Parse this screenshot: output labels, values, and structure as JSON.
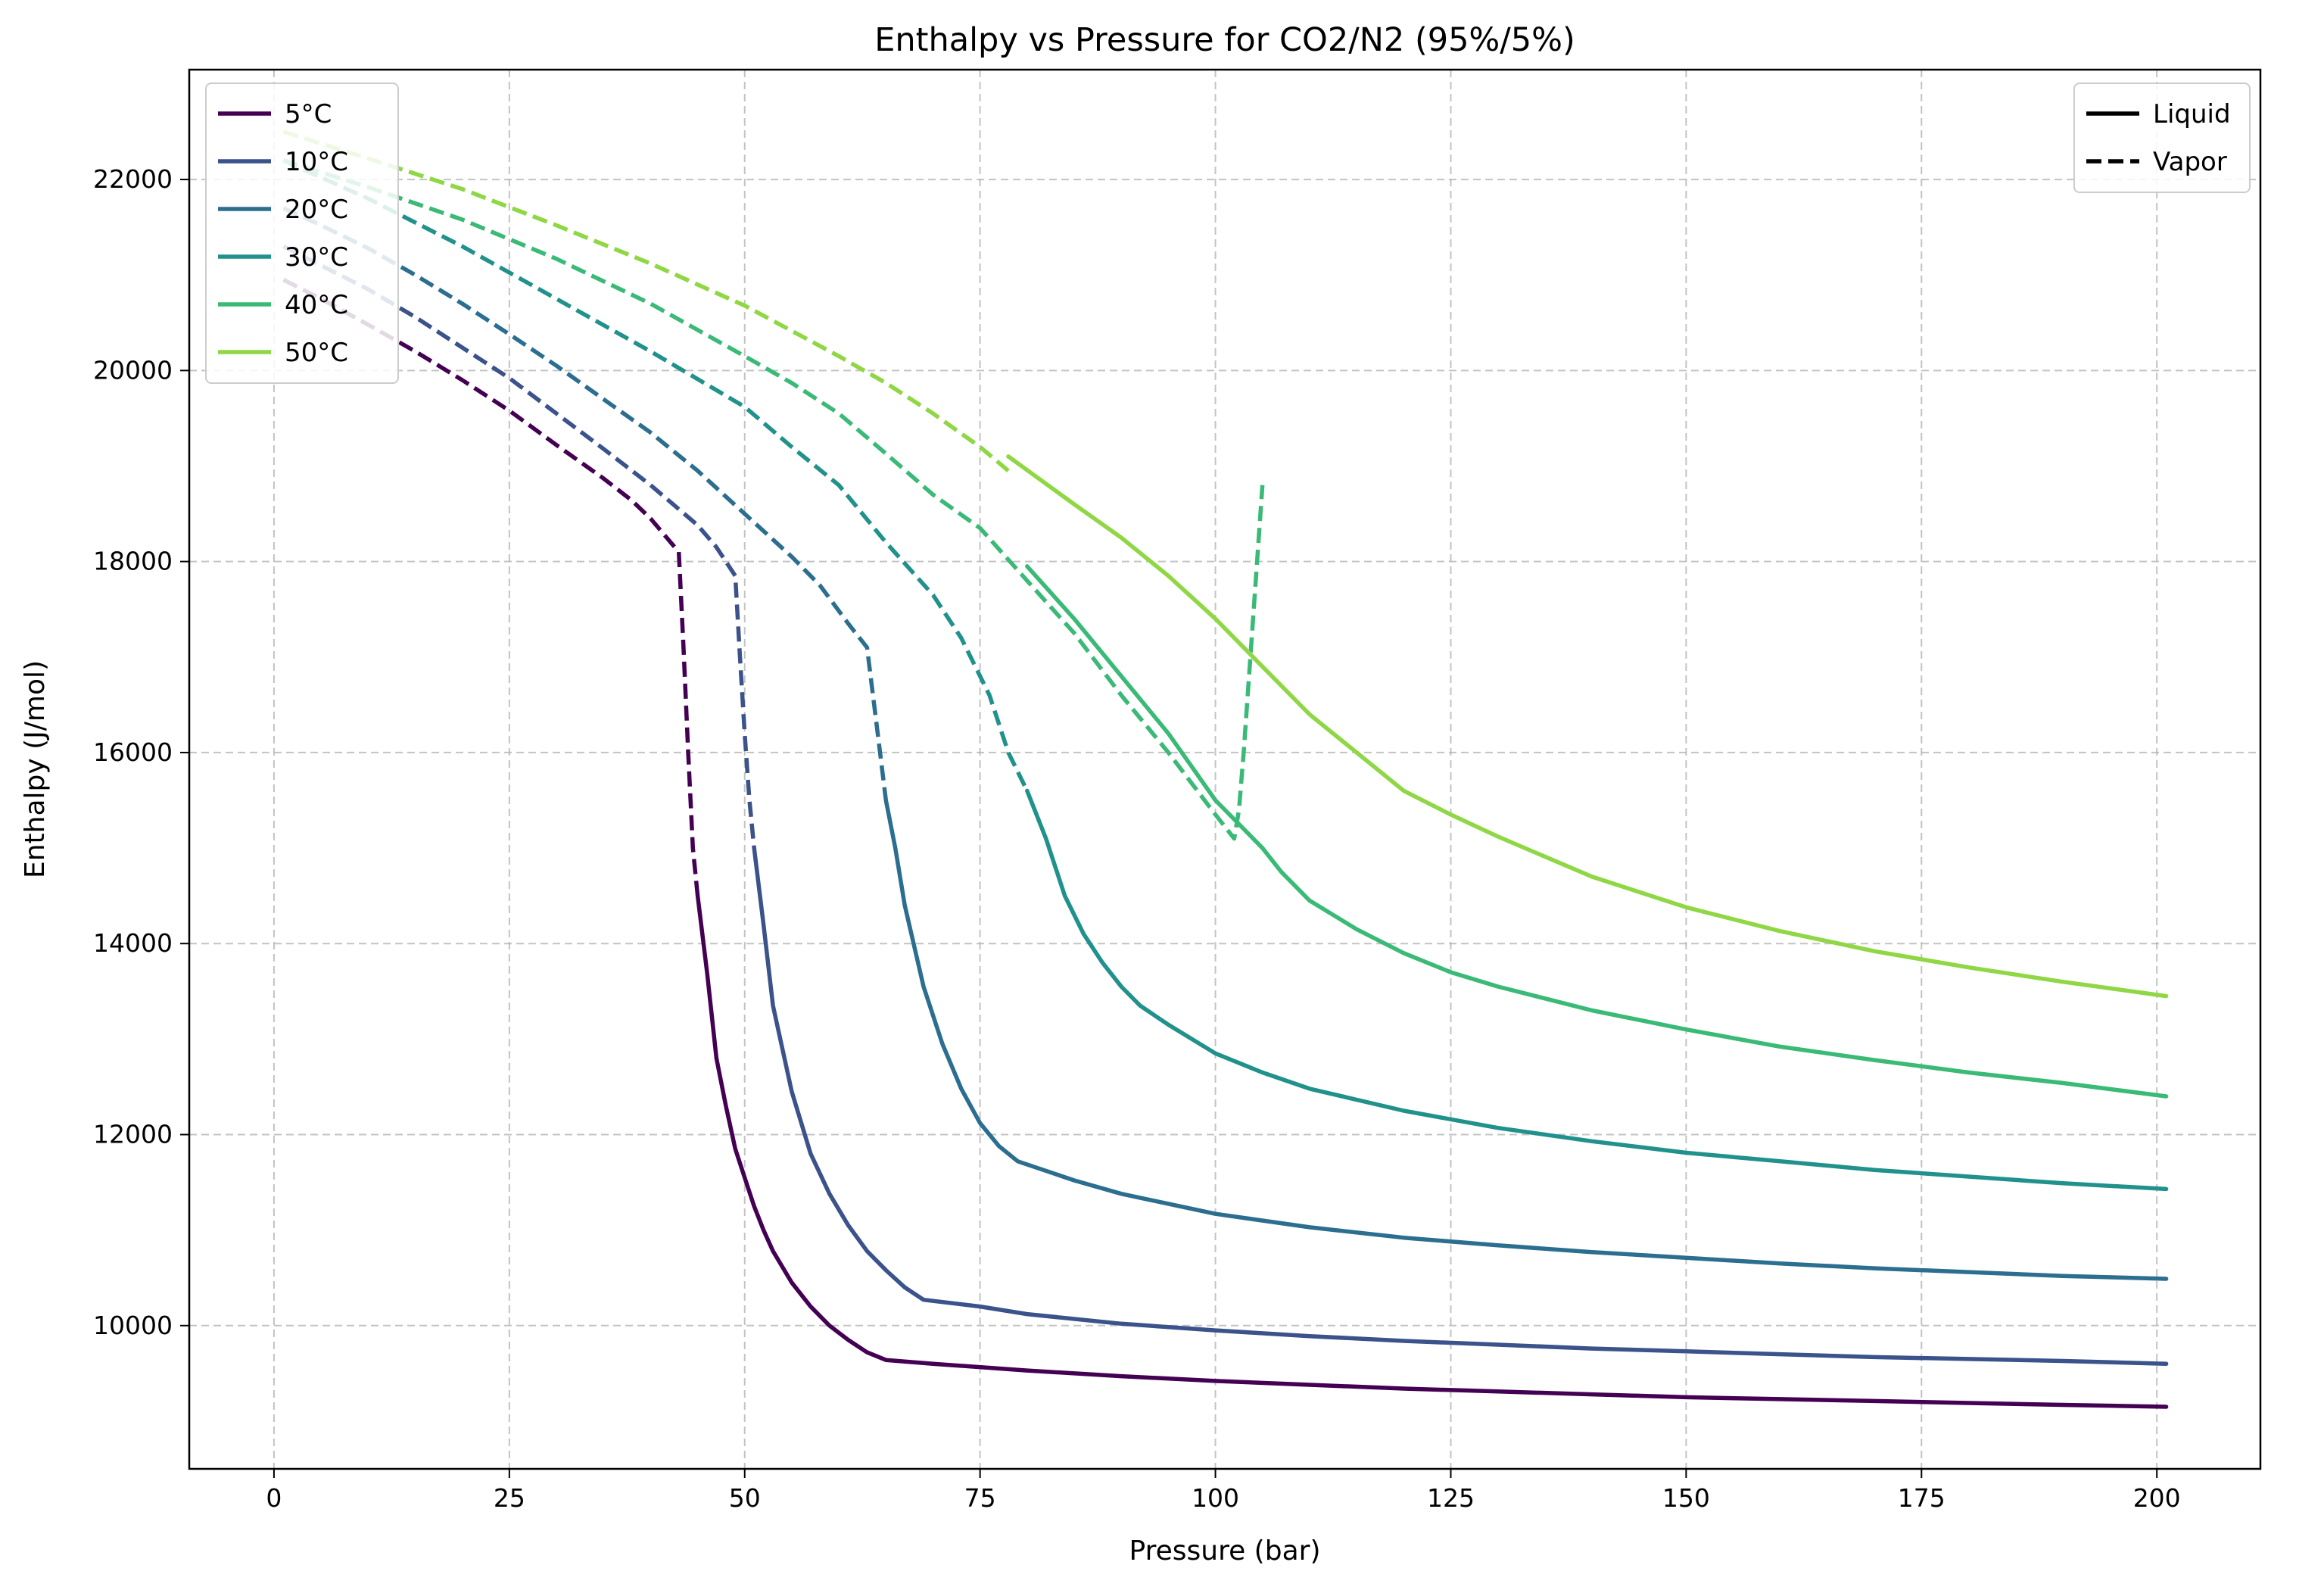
{
  "chart_data": {
    "type": "line",
    "title": "Enthalpy vs Pressure for CO2/N2 (95%/5%)",
    "xlabel": "Pressure (bar)",
    "ylabel": "Enthalpy (J/mol)",
    "xlim": [
      -9,
      211
    ],
    "ylim": [
      8500,
      23150
    ],
    "xticks": [
      0,
      25,
      50,
      75,
      100,
      125,
      150,
      175,
      200
    ],
    "yticks": [
      10000,
      12000,
      14000,
      16000,
      18000,
      20000,
      22000
    ],
    "grid": true,
    "legend_temperature": {
      "placement": "top-left",
      "entries": [
        "5°C",
        "10°C",
        "20°C",
        "30°C",
        "40°C",
        "50°C"
      ]
    },
    "legend_phase": {
      "placement": "top-right",
      "entries": [
        {
          "label": "Liquid",
          "style": "solid"
        },
        {
          "label": "Vapor",
          "style": "dashed"
        }
      ]
    },
    "series": [
      {
        "name": "5°C",
        "color": "#440154",
        "vapor": [
          [
            1,
            20950
          ],
          [
            5,
            20750
          ],
          [
            10,
            20480
          ],
          [
            15,
            20200
          ],
          [
            20,
            19900
          ],
          [
            25,
            19580
          ],
          [
            30,
            19220
          ],
          [
            35,
            18870
          ],
          [
            38,
            18640
          ],
          [
            40,
            18450
          ],
          [
            43,
            18100
          ],
          [
            43.5,
            17100
          ],
          [
            44,
            16000
          ],
          [
            44.5,
            15000
          ],
          [
            45,
            14500
          ]
        ],
        "liquid": [
          [
            45,
            14500
          ],
          [
            46,
            13700
          ],
          [
            47,
            12800
          ],
          [
            48,
            12300
          ],
          [
            49,
            11850
          ],
          [
            50,
            11550
          ],
          [
            51,
            11250
          ],
          [
            52,
            11000
          ],
          [
            53,
            10780
          ],
          [
            55,
            10450
          ],
          [
            57,
            10200
          ],
          [
            59,
            10000
          ],
          [
            61,
            9850
          ],
          [
            63,
            9720
          ],
          [
            65,
            9640
          ],
          [
            70,
            9600
          ],
          [
            80,
            9530
          ],
          [
            90,
            9470
          ],
          [
            100,
            9420
          ],
          [
            110,
            9380
          ],
          [
            120,
            9340
          ],
          [
            130,
            9310
          ],
          [
            140,
            9280
          ],
          [
            150,
            9250
          ],
          [
            160,
            9230
          ],
          [
            170,
            9210
          ],
          [
            180,
            9190
          ],
          [
            190,
            9170
          ],
          [
            201,
            9150
          ]
        ]
      },
      {
        "name": "10°C",
        "color": "#3b528b",
        "vapor": [
          [
            1,
            21300
          ],
          [
            5,
            21100
          ],
          [
            10,
            20850
          ],
          [
            15,
            20560
          ],
          [
            20,
            20240
          ],
          [
            25,
            19920
          ],
          [
            30,
            19550
          ],
          [
            35,
            19180
          ],
          [
            40,
            18800
          ],
          [
            45,
            18380
          ],
          [
            47,
            18150
          ],
          [
            49,
            17850
          ],
          [
            49.5,
            17000
          ],
          [
            50,
            16200
          ],
          [
            50.5,
            15500
          ],
          [
            51,
            15000
          ]
        ],
        "liquid": [
          [
            51,
            15000
          ],
          [
            52,
            14200
          ],
          [
            53,
            13350
          ],
          [
            55,
            12450
          ],
          [
            57,
            11800
          ],
          [
            59,
            11380
          ],
          [
            61,
            11050
          ],
          [
            63,
            10780
          ],
          [
            65,
            10580
          ],
          [
            67,
            10400
          ],
          [
            69,
            10270
          ],
          [
            75,
            10200
          ],
          [
            80,
            10120
          ],
          [
            90,
            10020
          ],
          [
            100,
            9950
          ],
          [
            110,
            9890
          ],
          [
            120,
            9840
          ],
          [
            130,
            9800
          ],
          [
            140,
            9760
          ],
          [
            150,
            9730
          ],
          [
            160,
            9700
          ],
          [
            170,
            9670
          ],
          [
            180,
            9650
          ],
          [
            190,
            9630
          ],
          [
            201,
            9600
          ]
        ]
      },
      {
        "name": "20°C",
        "color": "#2c6e8f",
        "vapor": [
          [
            1,
            21700
          ],
          [
            5,
            21520
          ],
          [
            10,
            21280
          ],
          [
            15,
            21000
          ],
          [
            20,
            20700
          ],
          [
            25,
            20380
          ],
          [
            30,
            20050
          ],
          [
            35,
            19700
          ],
          [
            40,
            19350
          ],
          [
            45,
            18950
          ],
          [
            50,
            18500
          ],
          [
            55,
            18050
          ],
          [
            58,
            17750
          ],
          [
            61,
            17350
          ],
          [
            63,
            17100
          ],
          [
            63.5,
            16700
          ],
          [
            64,
            16300
          ],
          [
            64.5,
            15900
          ],
          [
            65,
            15500
          ]
        ],
        "liquid": [
          [
            65,
            15500
          ],
          [
            66,
            15000
          ],
          [
            67,
            14400
          ],
          [
            69,
            13550
          ],
          [
            71,
            12950
          ],
          [
            73,
            12480
          ],
          [
            75,
            12120
          ],
          [
            77,
            11880
          ],
          [
            79,
            11720
          ],
          [
            85,
            11520
          ],
          [
            90,
            11380
          ],
          [
            100,
            11170
          ],
          [
            110,
            11030
          ],
          [
            120,
            10920
          ],
          [
            130,
            10840
          ],
          [
            140,
            10770
          ],
          [
            150,
            10710
          ],
          [
            160,
            10650
          ],
          [
            170,
            10600
          ],
          [
            180,
            10560
          ],
          [
            190,
            10520
          ],
          [
            201,
            10490
          ]
        ]
      },
      {
        "name": "30°C",
        "color": "#21918c",
        "vapor": [
          [
            1,
            22200
          ],
          [
            10,
            21800
          ],
          [
            20,
            21300
          ],
          [
            30,
            20750
          ],
          [
            40,
            20200
          ],
          [
            50,
            19620
          ],
          [
            55,
            19200
          ],
          [
            60,
            18800
          ],
          [
            65,
            18200
          ],
          [
            70,
            17650
          ],
          [
            73,
            17200
          ],
          [
            76,
            16600
          ],
          [
            78,
            16000
          ],
          [
            80,
            15600
          ]
        ],
        "liquid": [
          [
            80,
            15600
          ],
          [
            82,
            15100
          ],
          [
            84,
            14500
          ],
          [
            86,
            14100
          ],
          [
            88,
            13800
          ],
          [
            90,
            13550
          ],
          [
            92,
            13350
          ],
          [
            95,
            13150
          ],
          [
            100,
            12850
          ],
          [
            105,
            12650
          ],
          [
            110,
            12480
          ],
          [
            120,
            12250
          ],
          [
            130,
            12070
          ],
          [
            140,
            11930
          ],
          [
            150,
            11810
          ],
          [
            160,
            11720
          ],
          [
            170,
            11630
          ],
          [
            180,
            11560
          ],
          [
            190,
            11490
          ],
          [
            201,
            11430
          ]
        ]
      },
      {
        "name": "40°C",
        "color": "#3aba76",
        "vapor": [
          [
            1,
            22200
          ],
          [
            10,
            21920
          ],
          [
            20,
            21580
          ],
          [
            30,
            21170
          ],
          [
            40,
            20700
          ],
          [
            50,
            20150
          ],
          [
            55,
            19870
          ],
          [
            60,
            19550
          ],
          [
            65,
            19130
          ],
          [
            70,
            18700
          ],
          [
            75,
            18350
          ],
          [
            80,
            17800
          ],
          [
            85,
            17250
          ],
          [
            90,
            16600
          ],
          [
            95,
            16000
          ],
          [
            100,
            15350
          ],
          [
            102,
            15100
          ],
          [
            102.5,
            15400
          ],
          [
            103,
            16000
          ],
          [
            103.5,
            16700
          ],
          [
            104,
            17400
          ],
          [
            104.5,
            18100
          ],
          [
            105,
            18800
          ]
        ],
        "liquid": [
          [
            80,
            17950
          ],
          [
            85,
            17400
          ],
          [
            90,
            16800
          ],
          [
            95,
            16200
          ],
          [
            100,
            15500
          ],
          [
            103,
            15200
          ],
          [
            105,
            15000
          ],
          [
            107,
            14750
          ],
          [
            110,
            14450
          ],
          [
            115,
            14150
          ],
          [
            120,
            13900
          ],
          [
            125,
            13700
          ],
          [
            130,
            13550
          ],
          [
            140,
            13300
          ],
          [
            150,
            13100
          ],
          [
            160,
            12920
          ],
          [
            170,
            12780
          ],
          [
            180,
            12650
          ],
          [
            190,
            12540
          ],
          [
            201,
            12400
          ]
        ]
      },
      {
        "name": "50°C",
        "color": "#8fd744",
        "vapor": [
          [
            1,
            22500
          ],
          [
            10,
            22220
          ],
          [
            20,
            21900
          ],
          [
            30,
            21520
          ],
          [
            40,
            21120
          ],
          [
            50,
            20680
          ],
          [
            60,
            20150
          ],
          [
            65,
            19870
          ],
          [
            70,
            19550
          ],
          [
            75,
            19200
          ],
          [
            78,
            18950
          ]
        ],
        "liquid": [
          [
            78,
            19100
          ],
          [
            85,
            18600
          ],
          [
            90,
            18250
          ],
          [
            95,
            17850
          ],
          [
            100,
            17400
          ],
          [
            105,
            16900
          ],
          [
            110,
            16400
          ],
          [
            115,
            16000
          ],
          [
            120,
            15600
          ],
          [
            125,
            15350
          ],
          [
            130,
            15120
          ],
          [
            140,
            14700
          ],
          [
            150,
            14380
          ],
          [
            160,
            14130
          ],
          [
            170,
            13920
          ],
          [
            180,
            13750
          ],
          [
            190,
            13600
          ],
          [
            201,
            13450
          ]
        ]
      }
    ]
  }
}
